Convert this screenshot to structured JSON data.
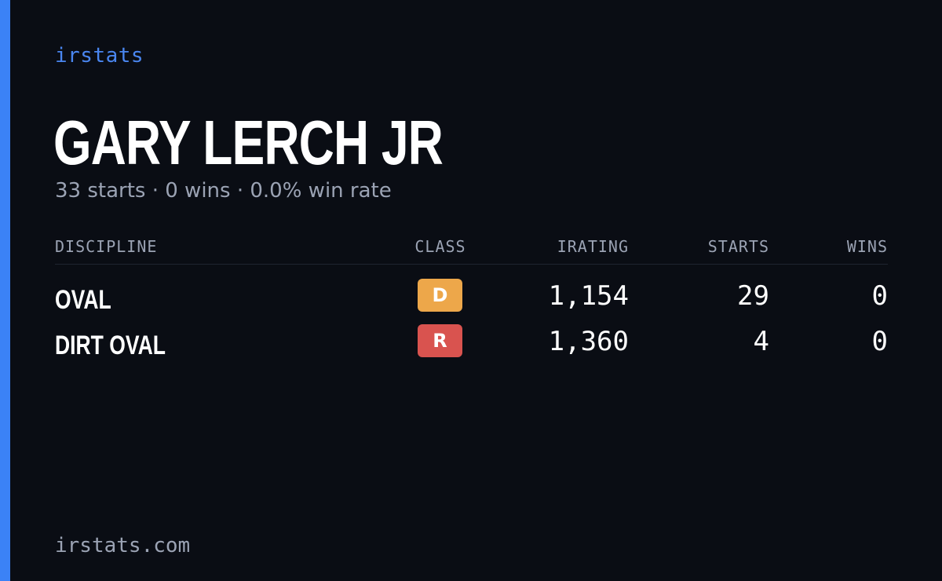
{
  "brand": "irstats",
  "player": {
    "name": "GARY LERCH JR",
    "summary": "33 starts · 0 wins · 0.0% win rate"
  },
  "table": {
    "headers": {
      "discipline": "DISCIPLINE",
      "class": "CLASS",
      "irating": "IRATING",
      "starts": "STARTS",
      "wins": "WINS"
    },
    "rows": [
      {
        "discipline": "OVAL",
        "class": "D",
        "class_color": "#eda74a",
        "irating": "1,154",
        "starts": "29",
        "wins": "0"
      },
      {
        "discipline": "DIRT OVAL",
        "class": "R",
        "class_color": "#d9534f",
        "irating": "1,360",
        "starts": "4",
        "wins": "0"
      }
    ]
  },
  "footer": "irstats.com",
  "colors": {
    "background": "#0a0d14",
    "accent": "#3b82f6",
    "brand_text": "#4a86f0",
    "muted_text": "#9ba3b4"
  }
}
